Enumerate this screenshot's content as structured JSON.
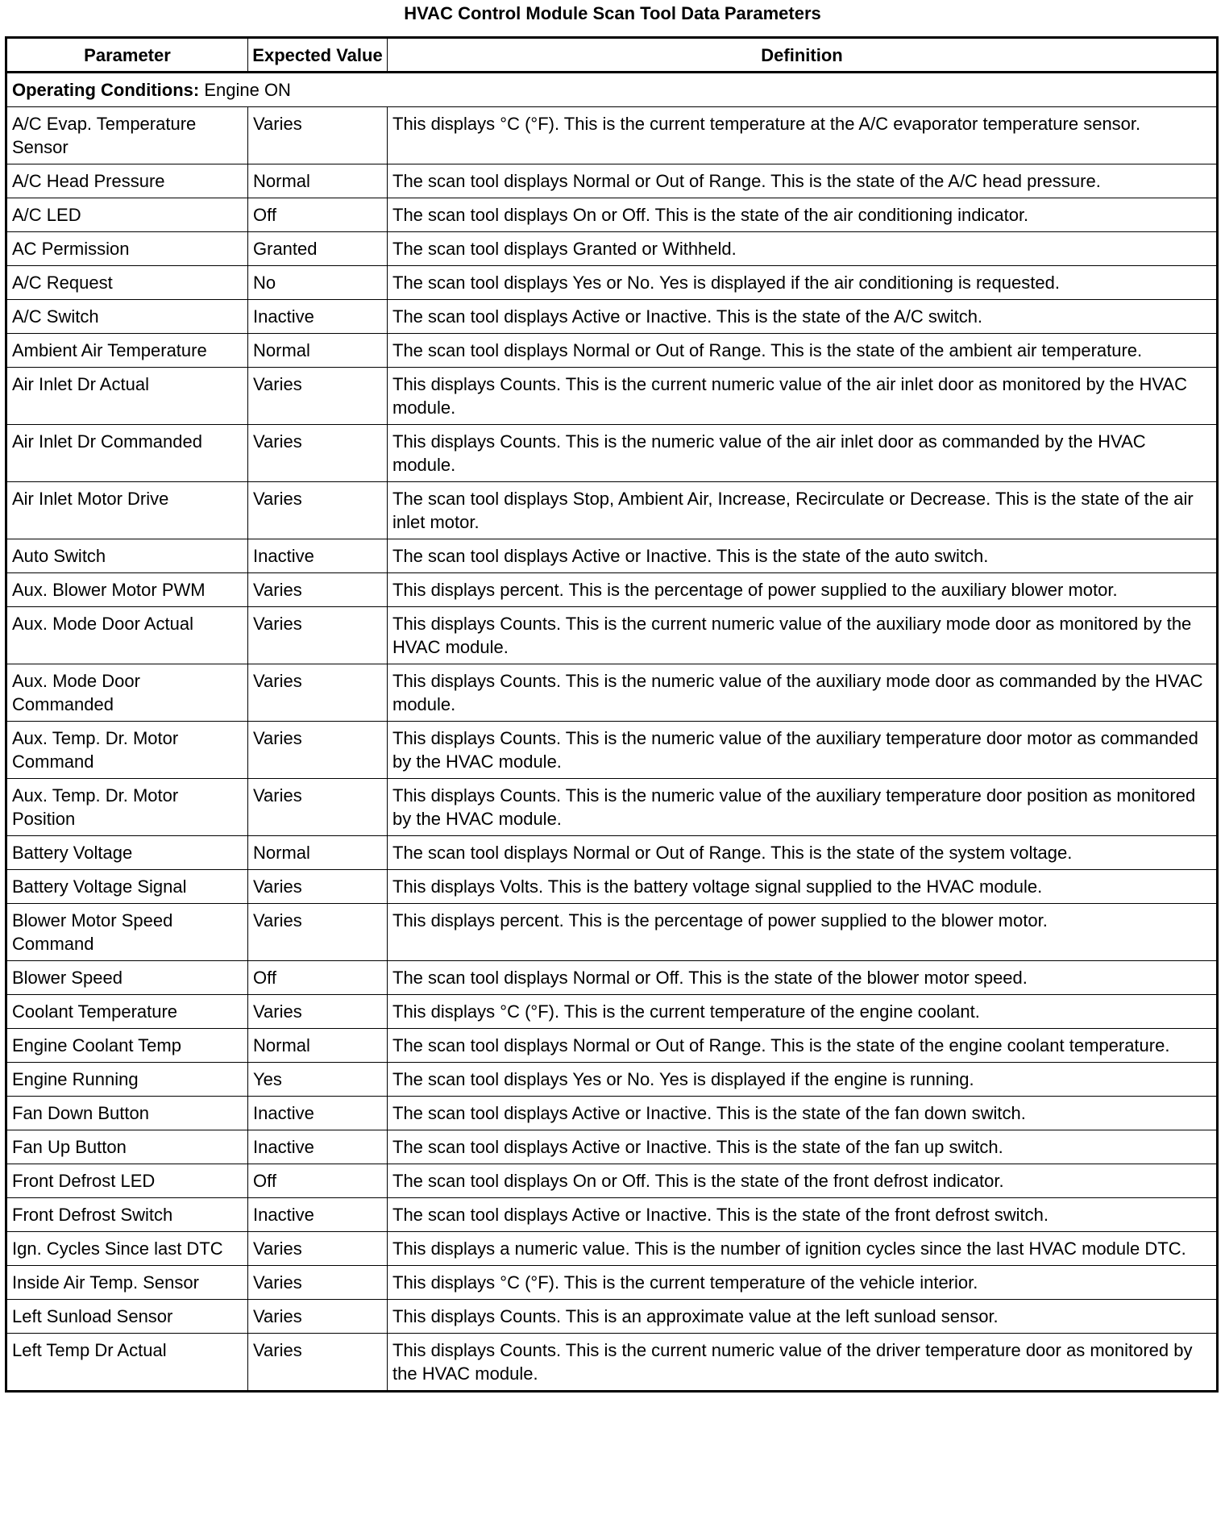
{
  "title": "HVAC Control Module Scan Tool Data Parameters",
  "headers": {
    "parameter": "Parameter",
    "expected": "Expected Value",
    "definition": "Definition"
  },
  "conditions": {
    "label": "Operating Conditions:",
    "value": "Engine ON"
  },
  "rows": [
    {
      "p": "A/C Evap. Temperature Sensor",
      "v": "Varies",
      "d": "This displays °C (°F). This is the current temperature at the A/C evaporator temperature sensor."
    },
    {
      "p": "A/C Head Pressure",
      "v": "Normal",
      "d": "The scan tool displays Normal or Out of Range. This is the state of the A/C head pressure."
    },
    {
      "p": "A/C LED",
      "v": "Off",
      "d": "The scan tool displays On or Off. This is the state of the air conditioning indicator."
    },
    {
      "p": "AC Permission",
      "v": "Granted",
      "d": "The scan tool displays Granted or Withheld."
    },
    {
      "p": "A/C Request",
      "v": "No",
      "d": "The scan tool displays Yes or No. Yes is displayed if the air conditioning is requested."
    },
    {
      "p": "A/C Switch",
      "v": "Inactive",
      "d": "The scan tool displays Active or Inactive. This is the state of the A/C switch."
    },
    {
      "p": "Ambient Air Temperature",
      "v": "Normal",
      "d": "The scan tool displays Normal or Out of Range. This is the state of the ambient air temperature."
    },
    {
      "p": "Air Inlet Dr Actual",
      "v": "Varies",
      "d": "This displays Counts. This is the current numeric value of the air inlet door as monitored by the HVAC module."
    },
    {
      "p": "Air Inlet Dr Commanded",
      "v": "Varies",
      "d": "This displays Counts. This is the numeric value of the air inlet door as commanded by the HVAC module."
    },
    {
      "p": "Air Inlet Motor Drive",
      "v": "Varies",
      "d": "The scan tool displays Stop, Ambient Air, Increase, Recirculate or Decrease. This is the state of the air inlet motor."
    },
    {
      "p": "Auto Switch",
      "v": "Inactive",
      "d": "The scan tool displays Active or Inactive. This is the state of the auto switch."
    },
    {
      "p": "Aux. Blower Motor PWM",
      "v": "Varies",
      "d": "This displays percent. This is the percentage of power supplied to the auxiliary blower motor."
    },
    {
      "p": "Aux. Mode Door Actual",
      "v": "Varies",
      "d": "This displays Counts. This is the current numeric value of the auxiliary mode door as monitored by the HVAC module."
    },
    {
      "p": "Aux. Mode Door Commanded",
      "v": "Varies",
      "d": "This displays Counts. This is the numeric value of the auxiliary mode door as commanded by the HVAC module."
    },
    {
      "p": "Aux. Temp. Dr. Motor Command",
      "v": "Varies",
      "d": "This displays Counts. This is the numeric value of the auxiliary temperature door motor as commanded by the HVAC module."
    },
    {
      "p": "Aux. Temp. Dr. Motor Position",
      "v": "Varies",
      "d": "This displays Counts. This is the numeric value of the auxiliary temperature door position as monitored by the HVAC module."
    },
    {
      "p": "Battery Voltage",
      "v": "Normal",
      "d": "The scan tool displays Normal or Out of Range. This is the state of the system voltage."
    },
    {
      "p": "Battery Voltage Signal",
      "v": "Varies",
      "d": "This displays Volts. This is the battery voltage signal supplied to the HVAC module."
    },
    {
      "p": "Blower Motor Speed Command",
      "v": "Varies",
      "d": "This displays percent. This is the percentage of power supplied to the blower motor."
    },
    {
      "p": "Blower Speed",
      "v": "Off",
      "d": "The scan tool displays Normal or Off. This is the state of the blower motor speed."
    },
    {
      "p": "Coolant Temperature",
      "v": "Varies",
      "d": "This displays °C (°F). This is the current temperature of the engine coolant."
    },
    {
      "p": "Engine Coolant Temp",
      "v": "Normal",
      "d": "The scan tool displays Normal or Out of Range. This is the state of the engine coolant temperature."
    },
    {
      "p": "Engine Running",
      "v": "Yes",
      "d": "The scan tool displays Yes or No. Yes is displayed if the engine is running."
    },
    {
      "p": "Fan Down Button",
      "v": "Inactive",
      "d": "The scan tool displays Active or Inactive. This is the state of the fan down switch."
    },
    {
      "p": "Fan Up Button",
      "v": "Inactive",
      "d": "The scan tool displays Active or Inactive. This is the state of the fan up switch."
    },
    {
      "p": "Front Defrost LED",
      "v": "Off",
      "d": "The scan tool displays On or Off. This is the state of the front defrost indicator."
    },
    {
      "p": "Front Defrost Switch",
      "v": "Inactive",
      "d": "The scan tool displays Active or Inactive. This is the state of the front defrost switch."
    },
    {
      "p": "Ign. Cycles Since last DTC",
      "v": "Varies",
      "d": "This displays a numeric value. This is the number of ignition cycles since the last HVAC module DTC."
    },
    {
      "p": "Inside Air Temp. Sensor",
      "v": "Varies",
      "d": "This displays °C (°F). This is the current temperature of the vehicle interior."
    },
    {
      "p": "Left Sunload Sensor",
      "v": "Varies",
      "d": "This displays Counts. This is an approximate value at the left sunload sensor."
    },
    {
      "p": "Left Temp Dr Actual",
      "v": "Varies",
      "d": "This displays Counts. This is the current numeric value of the driver temperature door as monitored by the HVAC module."
    }
  ]
}
